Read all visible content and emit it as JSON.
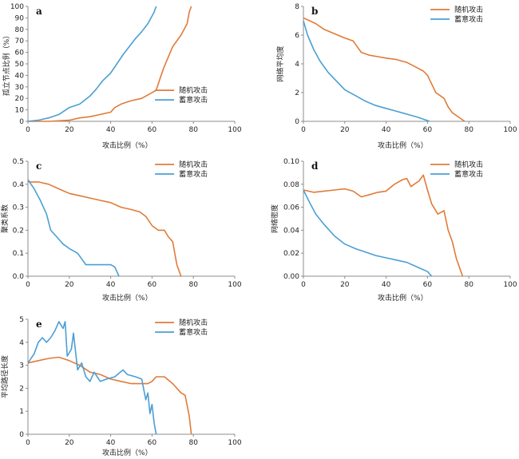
{
  "colors": {
    "random": "#e07b39",
    "deliberate": "#4a9fd4",
    "axis": "#8c8c8c"
  },
  "chart_data": [
    {
      "type": "line",
      "panel": "a",
      "ylabel": "孤立节点比例（%）",
      "xlabel": "攻击比例（%）",
      "xlim": [
        0,
        100
      ],
      "ylim": [
        0,
        100
      ],
      "xticks": [
        0,
        20,
        40,
        60,
        80,
        100
      ],
      "yticks": [
        0,
        10,
        20,
        30,
        40,
        50,
        60,
        70,
        80,
        90,
        100
      ],
      "legend_position": "right",
      "series": [
        {
          "name": "随机攻击",
          "color_key": "random",
          "points": [
            [
              0,
              0
            ],
            [
              10,
              0
            ],
            [
              20,
              1
            ],
            [
              25,
              3
            ],
            [
              30,
              4
            ],
            [
              35,
              6
            ],
            [
              40,
              8
            ],
            [
              42,
              12
            ],
            [
              45,
              15
            ],
            [
              50,
              18
            ],
            [
              55,
              20
            ],
            [
              58,
              23
            ],
            [
              62,
              27
            ],
            [
              64,
              38
            ],
            [
              66,
              48
            ],
            [
              70,
              65
            ],
            [
              74,
              75
            ],
            [
              77,
              85
            ],
            [
              78,
              95
            ],
            [
              79,
              100
            ]
          ]
        },
        {
          "name": "蓄意攻击",
          "color_key": "deliberate",
          "points": [
            [
              0,
              0
            ],
            [
              5,
              1
            ],
            [
              10,
              3
            ],
            [
              15,
              6
            ],
            [
              20,
              12
            ],
            [
              25,
              15
            ],
            [
              30,
              22
            ],
            [
              33,
              28
            ],
            [
              36,
              35
            ],
            [
              40,
              42
            ],
            [
              43,
              50
            ],
            [
              46,
              58
            ],
            [
              49,
              65
            ],
            [
              52,
              72
            ],
            [
              55,
              78
            ],
            [
              58,
              85
            ],
            [
              61,
              95
            ],
            [
              62,
              100
            ]
          ]
        }
      ]
    },
    {
      "type": "line",
      "panel": "b",
      "ylabel": "网络平均度",
      "xlabel": "攻击比例（%）",
      "xlim": [
        0,
        100
      ],
      "ylim": [
        0,
        8
      ],
      "xticks": [
        0,
        20,
        40,
        60,
        80,
        100
      ],
      "yticks": [
        0,
        2,
        4,
        6,
        8
      ],
      "legend_position": "top-right",
      "series": [
        {
          "name": "随机攻击",
          "color_key": "random",
          "points": [
            [
              0,
              7.2
            ],
            [
              3,
              7.0
            ],
            [
              6,
              6.8
            ],
            [
              10,
              6.4
            ],
            [
              15,
              6.1
            ],
            [
              20,
              5.8
            ],
            [
              24,
              5.6
            ],
            [
              26,
              5.2
            ],
            [
              28,
              4.8
            ],
            [
              32,
              4.6
            ],
            [
              36,
              4.5
            ],
            [
              40,
              4.4
            ],
            [
              45,
              4.3
            ],
            [
              50,
              4.1
            ],
            [
              54,
              3.8
            ],
            [
              58,
              3.5
            ],
            [
              60,
              3.2
            ],
            [
              62,
              2.6
            ],
            [
              64,
              2.0
            ],
            [
              68,
              1.6
            ],
            [
              70,
              1.0
            ],
            [
              72,
              0.6
            ],
            [
              75,
              0.3
            ],
            [
              78,
              0.0
            ]
          ]
        },
        {
          "name": "蓄意攻击",
          "color_key": "deliberate",
          "points": [
            [
              0,
              7.0
            ],
            [
              2,
              6.0
            ],
            [
              5,
              5.0
            ],
            [
              8,
              4.2
            ],
            [
              12,
              3.4
            ],
            [
              16,
              2.8
            ],
            [
              20,
              2.2
            ],
            [
              25,
              1.8
            ],
            [
              30,
              1.4
            ],
            [
              35,
              1.1
            ],
            [
              40,
              0.9
            ],
            [
              45,
              0.7
            ],
            [
              50,
              0.5
            ],
            [
              55,
              0.3
            ],
            [
              58,
              0.15
            ],
            [
              61,
              0.0
            ]
          ]
        }
      ]
    },
    {
      "type": "line",
      "panel": "c",
      "ylabel": "聚类系数",
      "xlabel": "攻击比例（%）",
      "xlim": [
        0,
        100
      ],
      "ylim": [
        0,
        0.5
      ],
      "xticks": [
        0,
        20,
        40,
        60,
        80,
        100
      ],
      "yticks": [
        0,
        0.1,
        0.2,
        0.3,
        0.4,
        0.5
      ],
      "legend_position": "top-right",
      "series": [
        {
          "name": "随机攻击",
          "color_key": "random",
          "points": [
            [
              0,
              0.41
            ],
            [
              5,
              0.41
            ],
            [
              10,
              0.4
            ],
            [
              15,
              0.38
            ],
            [
              20,
              0.36
            ],
            [
              25,
              0.35
            ],
            [
              30,
              0.34
            ],
            [
              35,
              0.33
            ],
            [
              40,
              0.32
            ],
            [
              45,
              0.3
            ],
            [
              50,
              0.29
            ],
            [
              54,
              0.28
            ],
            [
              57,
              0.26
            ],
            [
              60,
              0.22
            ],
            [
              63,
              0.2
            ],
            [
              66,
              0.2
            ],
            [
              68,
              0.17
            ],
            [
              70,
              0.15
            ],
            [
              72,
              0.05
            ],
            [
              74,
              0.0
            ]
          ]
        },
        {
          "name": "蓄意攻击",
          "color_key": "deliberate",
          "points": [
            [
              0,
              0.42
            ],
            [
              3,
              0.38
            ],
            [
              6,
              0.33
            ],
            [
              9,
              0.27
            ],
            [
              11,
              0.2
            ],
            [
              14,
              0.17
            ],
            [
              17,
              0.14
            ],
            [
              20,
              0.12
            ],
            [
              24,
              0.1
            ],
            [
              28,
              0.05
            ],
            [
              32,
              0.05
            ],
            [
              36,
              0.05
            ],
            [
              40,
              0.05
            ],
            [
              42,
              0.04
            ],
            [
              44,
              0.0
            ]
          ]
        }
      ]
    },
    {
      "type": "line",
      "panel": "d",
      "ylabel": "网络密度",
      "xlabel": "攻击比例（%）",
      "xlim": [
        0,
        100
      ],
      "ylim": [
        0,
        0.1
      ],
      "xticks": [
        0,
        20,
        40,
        60,
        80,
        100
      ],
      "yticks": [
        0,
        0.02,
        0.04,
        0.06,
        0.08,
        0.1
      ],
      "legend_position": "top-right",
      "series": [
        {
          "name": "随机攻击",
          "color_key": "random",
          "points": [
            [
              0,
              0.075
            ],
            [
              5,
              0.073
            ],
            [
              10,
              0.074
            ],
            [
              15,
              0.075
            ],
            [
              20,
              0.076
            ],
            [
              24,
              0.074
            ],
            [
              28,
              0.069
            ],
            [
              32,
              0.071
            ],
            [
              36,
              0.073
            ],
            [
              40,
              0.074
            ],
            [
              44,
              0.08
            ],
            [
              48,
              0.084
            ],
            [
              50,
              0.085
            ],
            [
              52,
              0.078
            ],
            [
              56,
              0.083
            ],
            [
              58,
              0.088
            ],
            [
              60,
              0.075
            ],
            [
              62,
              0.063
            ],
            [
              65,
              0.054
            ],
            [
              68,
              0.057
            ],
            [
              70,
              0.04
            ],
            [
              72,
              0.03
            ],
            [
              74,
              0.015
            ],
            [
              76,
              0.005
            ],
            [
              77,
              0.0
            ]
          ]
        },
        {
          "name": "蓄意攻击",
          "color_key": "deliberate",
          "points": [
            [
              0,
              0.075
            ],
            [
              3,
              0.064
            ],
            [
              6,
              0.054
            ],
            [
              10,
              0.045
            ],
            [
              15,
              0.035
            ],
            [
              20,
              0.028
            ],
            [
              25,
              0.024
            ],
            [
              30,
              0.021
            ],
            [
              35,
              0.018
            ],
            [
              40,
              0.016
            ],
            [
              45,
              0.014
            ],
            [
              50,
              0.012
            ],
            [
              55,
              0.008
            ],
            [
              60,
              0.004
            ],
            [
              62,
              0.0
            ]
          ]
        }
      ]
    },
    {
      "type": "line",
      "panel": "e",
      "ylabel": "平均路径长度",
      "xlabel": "攻击比例（%）",
      "xlim": [
        0,
        100
      ],
      "ylim": [
        0,
        5
      ],
      "xticks": [
        0,
        20,
        40,
        60,
        80,
        100
      ],
      "yticks": [
        0,
        1,
        2,
        3,
        4,
        5
      ],
      "legend_position": "top-right",
      "series": [
        {
          "name": "随机攻击",
          "color_key": "random",
          "points": [
            [
              0,
              3.1
            ],
            [
              5,
              3.2
            ],
            [
              10,
              3.3
            ],
            [
              15,
              3.35
            ],
            [
              20,
              3.2
            ],
            [
              25,
              3.0
            ],
            [
              30,
              2.7
            ],
            [
              35,
              2.6
            ],
            [
              40,
              2.4
            ],
            [
              45,
              2.3
            ],
            [
              50,
              2.2
            ],
            [
              55,
              2.2
            ],
            [
              58,
              2.2
            ],
            [
              60,
              2.3
            ],
            [
              62,
              2.5
            ],
            [
              66,
              2.5
            ],
            [
              70,
              2.2
            ],
            [
              74,
              1.8
            ],
            [
              76,
              1.7
            ],
            [
              78,
              0.8
            ],
            [
              79,
              0.0
            ]
          ]
        },
        {
          "name": "蓄意攻击",
          "color_key": "deliberate",
          "points": [
            [
              0,
              3.1
            ],
            [
              3,
              3.5
            ],
            [
              5,
              4.0
            ],
            [
              7,
              4.2
            ],
            [
              9,
              4.0
            ],
            [
              11,
              4.2
            ],
            [
              13,
              4.5
            ],
            [
              15,
              4.9
            ],
            [
              17,
              4.6
            ],
            [
              18,
              4.9
            ],
            [
              19,
              3.4
            ],
            [
              21,
              3.7
            ],
            [
              22,
              4.4
            ],
            [
              24,
              2.8
            ],
            [
              26,
              3.1
            ],
            [
              28,
              2.5
            ],
            [
              30,
              2.3
            ],
            [
              32,
              2.7
            ],
            [
              35,
              2.3
            ],
            [
              38,
              2.4
            ],
            [
              42,
              2.5
            ],
            [
              46,
              2.8
            ],
            [
              48,
              2.6
            ],
            [
              52,
              2.5
            ],
            [
              55,
              2.4
            ],
            [
              57,
              1.5
            ],
            [
              58,
              1.8
            ],
            [
              59,
              0.9
            ],
            [
              60,
              1.3
            ],
            [
              61,
              0.5
            ],
            [
              62,
              0.0
            ]
          ]
        }
      ]
    }
  ]
}
